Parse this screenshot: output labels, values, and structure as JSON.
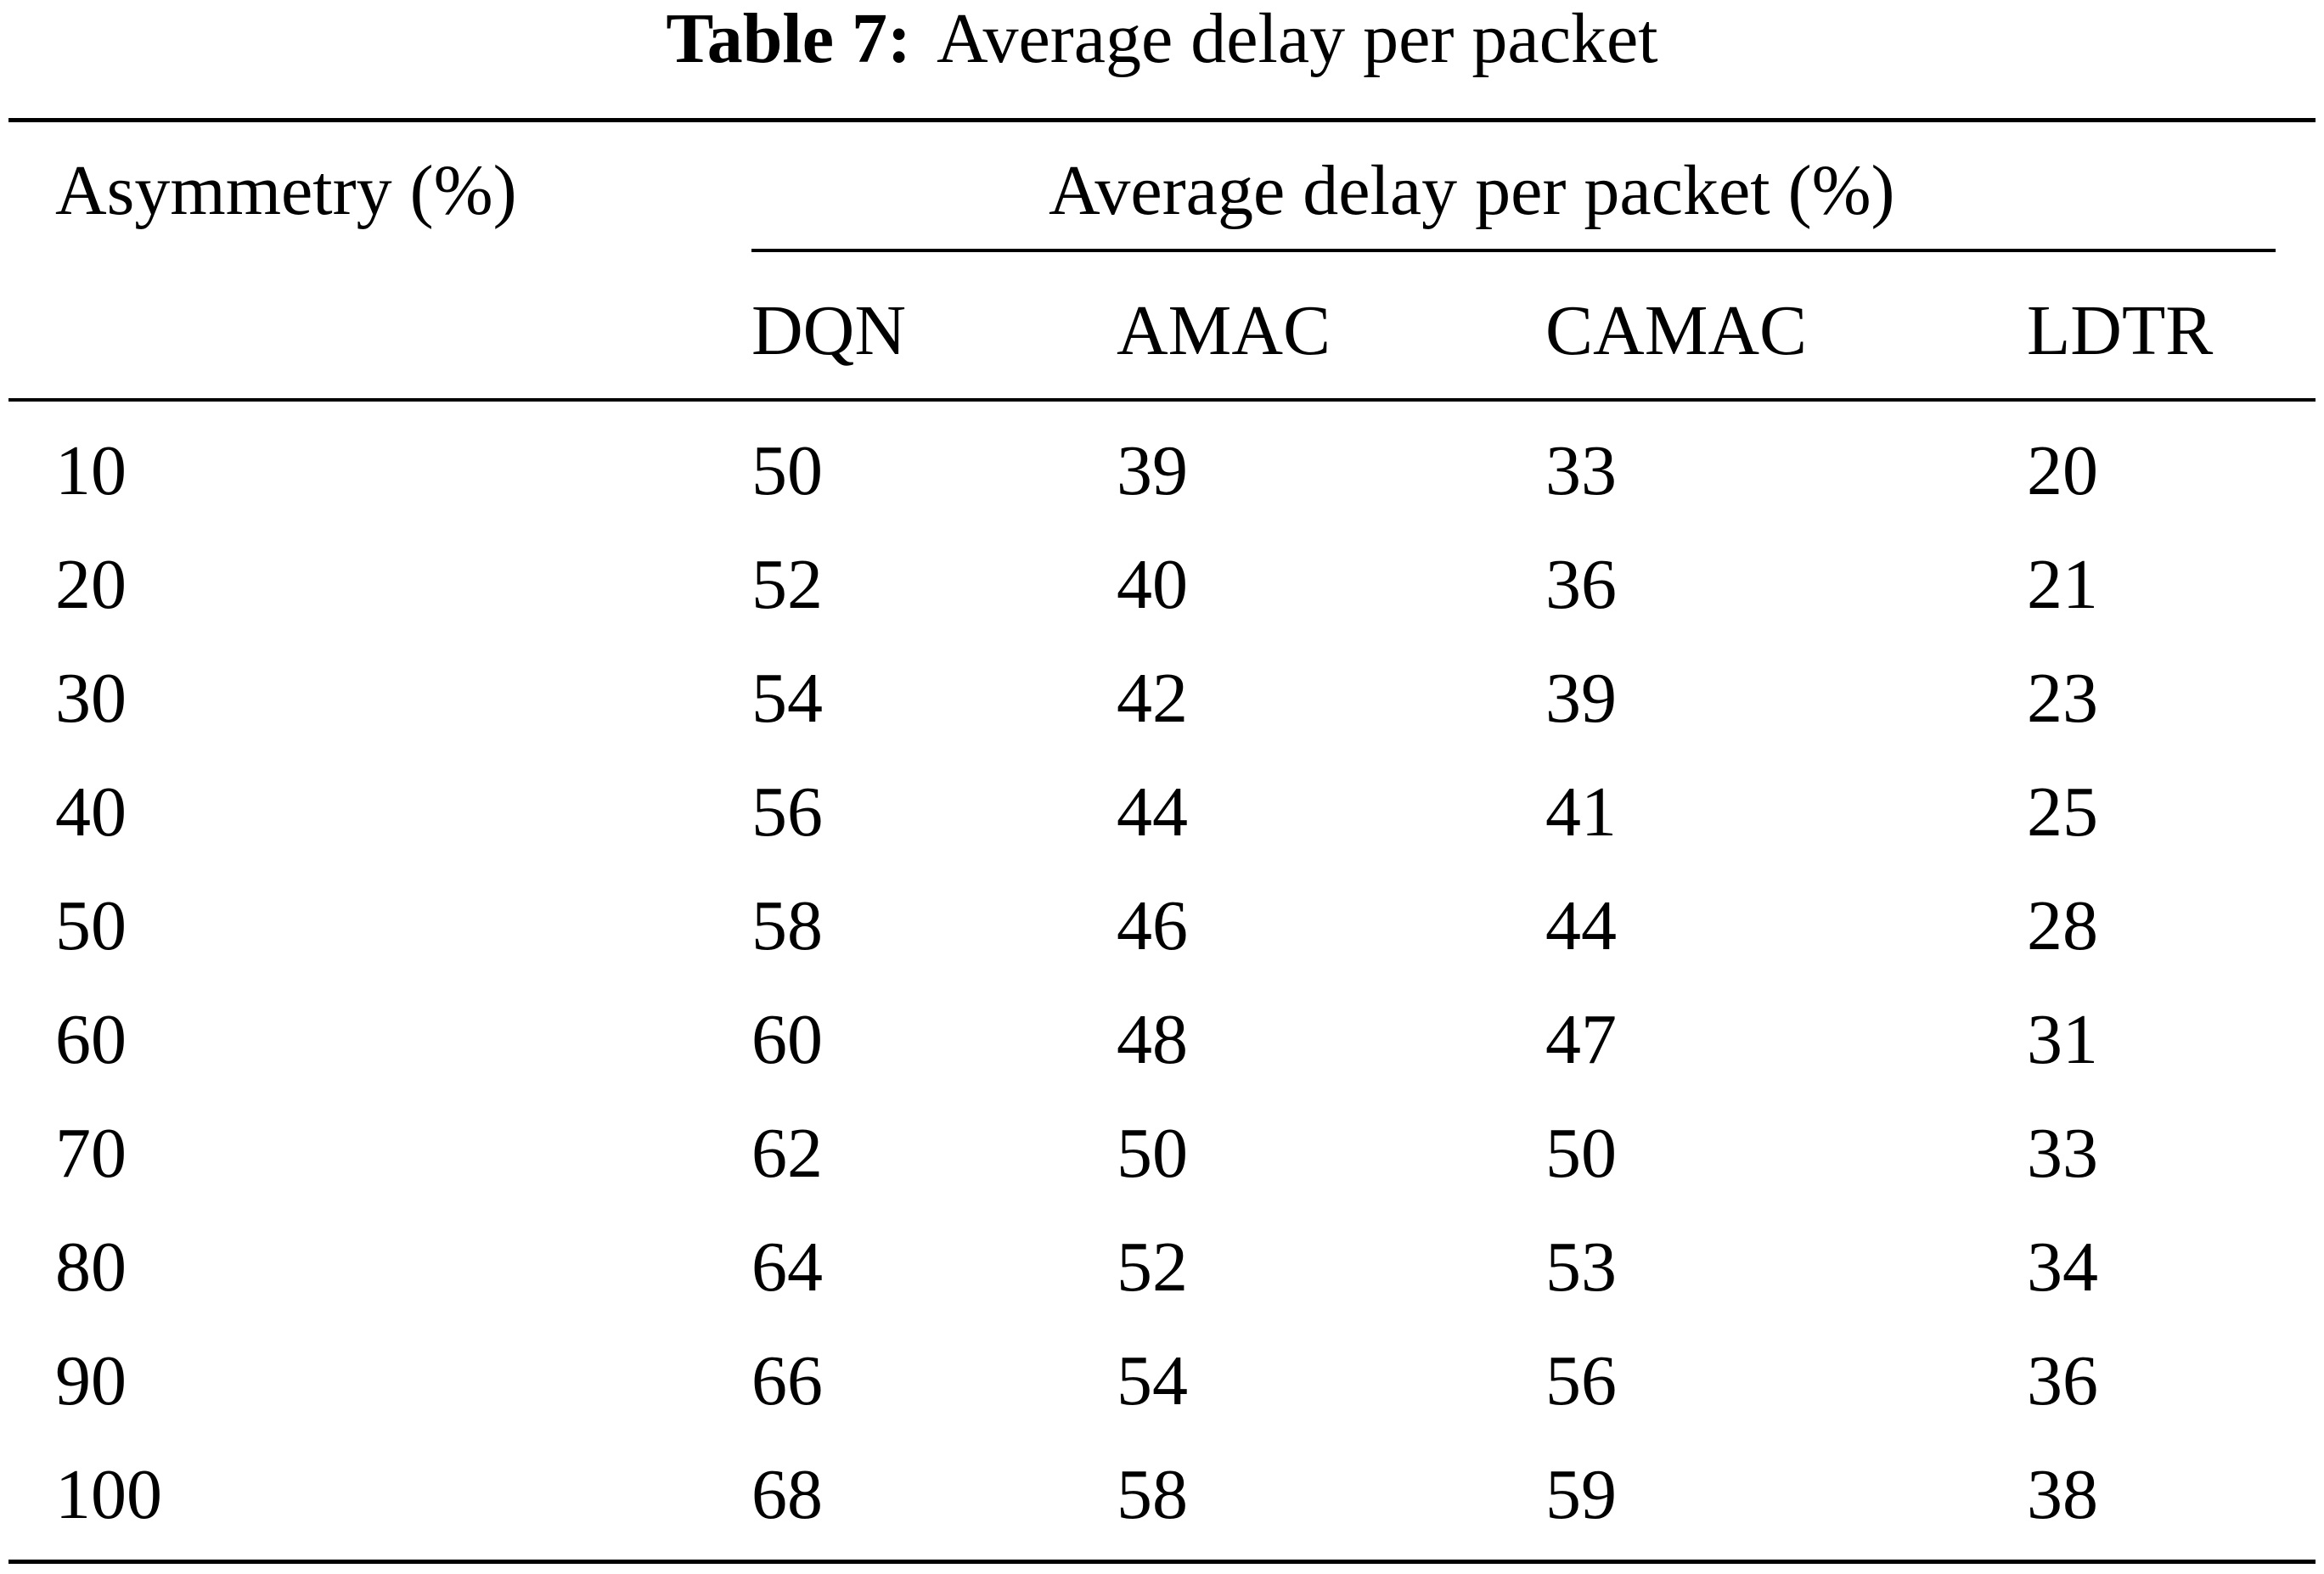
{
  "caption": {
    "label": "Table 7:",
    "title": "Average delay per packet"
  },
  "table": {
    "row_header": "Asymmetry (%)",
    "group_header": "Average delay per packet (%)",
    "columns": [
      "DQN",
      "AMAC",
      "CAMAC",
      "LDTR"
    ],
    "rows": [
      {
        "asymmetry": "10",
        "values": [
          "50",
          "39",
          "33",
          "20"
        ]
      },
      {
        "asymmetry": "20",
        "values": [
          "52",
          "40",
          "36",
          "21"
        ]
      },
      {
        "asymmetry": "30",
        "values": [
          "54",
          "42",
          "39",
          "23"
        ]
      },
      {
        "asymmetry": "40",
        "values": [
          "56",
          "44",
          "41",
          "25"
        ]
      },
      {
        "asymmetry": "50",
        "values": [
          "58",
          "46",
          "44",
          "28"
        ]
      },
      {
        "asymmetry": "60",
        "values": [
          "60",
          "48",
          "47",
          "31"
        ]
      },
      {
        "asymmetry": "70",
        "values": [
          "62",
          "50",
          "50",
          "33"
        ]
      },
      {
        "asymmetry": "80",
        "values": [
          "64",
          "52",
          "53",
          "34"
        ]
      },
      {
        "asymmetry": "90",
        "values": [
          "66",
          "54",
          "56",
          "36"
        ]
      },
      {
        "asymmetry": "100",
        "values": [
          "68",
          "58",
          "59",
          "38"
        ]
      }
    ]
  }
}
